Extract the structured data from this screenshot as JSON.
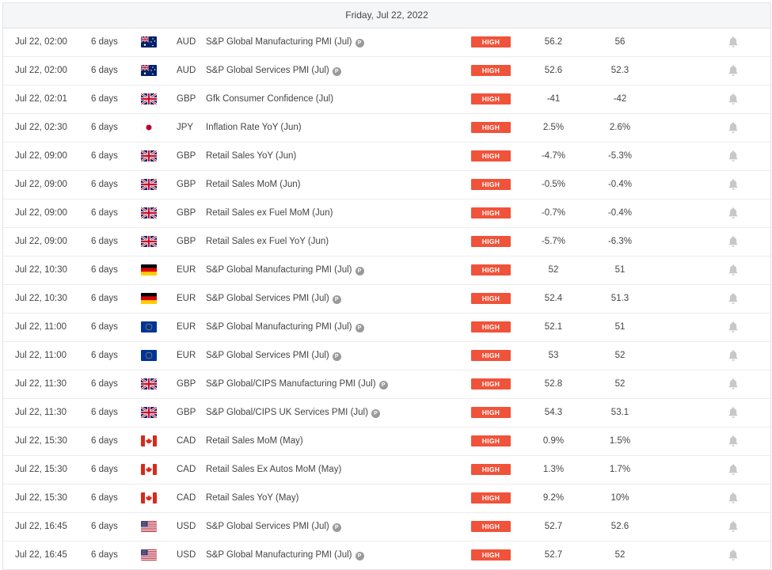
{
  "header": {
    "date": "Friday, Jul 22, 2022"
  },
  "colors": {
    "high_badge": "#f0533a",
    "bell": "#c8c8c8"
  },
  "events": [
    {
      "time": "Jul 22, 02:00",
      "days": "6 days",
      "flag": "au",
      "currency": "AUD",
      "event": "S&P Global Manufacturing PMI (Jul)",
      "preliminary": true,
      "impact": "HIGH",
      "actual": "56.2",
      "forecast": "56"
    },
    {
      "time": "Jul 22, 02:00",
      "days": "6 days",
      "flag": "au",
      "currency": "AUD",
      "event": "S&P Global Services PMI (Jul)",
      "preliminary": true,
      "impact": "HIGH",
      "actual": "52.6",
      "forecast": "52.3"
    },
    {
      "time": "Jul 22, 02:01",
      "days": "6 days",
      "flag": "gb",
      "currency": "GBP",
      "event": "Gfk Consumer Confidence (Jul)",
      "preliminary": false,
      "impact": "HIGH",
      "actual": "-41",
      "forecast": "-42"
    },
    {
      "time": "Jul 22, 02:30",
      "days": "6 days",
      "flag": "jp",
      "currency": "JPY",
      "event": "Inflation Rate YoY (Jun)",
      "preliminary": false,
      "impact": "HIGH",
      "actual": "2.5%",
      "forecast": "2.6%"
    },
    {
      "time": "Jul 22, 09:00",
      "days": "6 days",
      "flag": "gb",
      "currency": "GBP",
      "event": "Retail Sales YoY (Jun)",
      "preliminary": false,
      "impact": "HIGH",
      "actual": "-4.7%",
      "forecast": "-5.3%"
    },
    {
      "time": "Jul 22, 09:00",
      "days": "6 days",
      "flag": "gb",
      "currency": "GBP",
      "event": "Retail Sales MoM (Jun)",
      "preliminary": false,
      "impact": "HIGH",
      "actual": "-0.5%",
      "forecast": "-0.4%"
    },
    {
      "time": "Jul 22, 09:00",
      "days": "6 days",
      "flag": "gb",
      "currency": "GBP",
      "event": "Retail Sales ex Fuel MoM (Jun)",
      "preliminary": false,
      "impact": "HIGH",
      "actual": "-0.7%",
      "forecast": "-0.4%"
    },
    {
      "time": "Jul 22, 09:00",
      "days": "6 days",
      "flag": "gb",
      "currency": "GBP",
      "event": "Retail Sales ex Fuel YoY (Jun)",
      "preliminary": false,
      "impact": "HIGH",
      "actual": "-5.7%",
      "forecast": "-6.3%"
    },
    {
      "time": "Jul 22, 10:30",
      "days": "6 days",
      "flag": "de",
      "currency": "EUR",
      "event": "S&P Global Manufacturing PMI (Jul)",
      "preliminary": true,
      "impact": "HIGH",
      "actual": "52",
      "forecast": "51"
    },
    {
      "time": "Jul 22, 10:30",
      "days": "6 days",
      "flag": "de",
      "currency": "EUR",
      "event": "S&P Global Services PMI (Jul)",
      "preliminary": true,
      "impact": "HIGH",
      "actual": "52.4",
      "forecast": "51.3"
    },
    {
      "time": "Jul 22, 11:00",
      "days": "6 days",
      "flag": "eu",
      "currency": "EUR",
      "event": "S&P Global Manufacturing PMI (Jul)",
      "preliminary": true,
      "impact": "HIGH",
      "actual": "52.1",
      "forecast": "51"
    },
    {
      "time": "Jul 22, 11:00",
      "days": "6 days",
      "flag": "eu",
      "currency": "EUR",
      "event": "S&P Global Services PMI (Jul)",
      "preliminary": true,
      "impact": "HIGH",
      "actual": "53",
      "forecast": "52"
    },
    {
      "time": "Jul 22, 11:30",
      "days": "6 days",
      "flag": "gb",
      "currency": "GBP",
      "event": "S&P Global/CIPS Manufacturing PMI (Jul)",
      "preliminary": true,
      "impact": "HIGH",
      "actual": "52.8",
      "forecast": "52"
    },
    {
      "time": "Jul 22, 11:30",
      "days": "6 days",
      "flag": "gb",
      "currency": "GBP",
      "event": "S&P Global/CIPS UK Services PMI (Jul)",
      "preliminary": true,
      "impact": "HIGH",
      "actual": "54.3",
      "forecast": "53.1"
    },
    {
      "time": "Jul 22, 15:30",
      "days": "6 days",
      "flag": "ca",
      "currency": "CAD",
      "event": "Retail Sales MoM (May)",
      "preliminary": false,
      "impact": "HIGH",
      "actual": "0.9%",
      "forecast": "1.5%"
    },
    {
      "time": "Jul 22, 15:30",
      "days": "6 days",
      "flag": "ca",
      "currency": "CAD",
      "event": "Retail Sales Ex Autos MoM (May)",
      "preliminary": false,
      "impact": "HIGH",
      "actual": "1.3%",
      "forecast": "1.7%"
    },
    {
      "time": "Jul 22, 15:30",
      "days": "6 days",
      "flag": "ca",
      "currency": "CAD",
      "event": "Retail Sales YoY (May)",
      "preliminary": false,
      "impact": "HIGH",
      "actual": "9.2%",
      "forecast": "10%"
    },
    {
      "time": "Jul 22, 16:45",
      "days": "6 days",
      "flag": "us",
      "currency": "USD",
      "event": "S&P Global Services PMI (Jul)",
      "preliminary": true,
      "impact": "HIGH",
      "actual": "52.7",
      "forecast": "52.6"
    },
    {
      "time": "Jul 22, 16:45",
      "days": "6 days",
      "flag": "us",
      "currency": "USD",
      "event": "S&P Global Manufacturing PMI (Jul)",
      "preliminary": true,
      "impact": "HIGH",
      "actual": "52.7",
      "forecast": "52"
    }
  ],
  "preliminary_badge": "P"
}
